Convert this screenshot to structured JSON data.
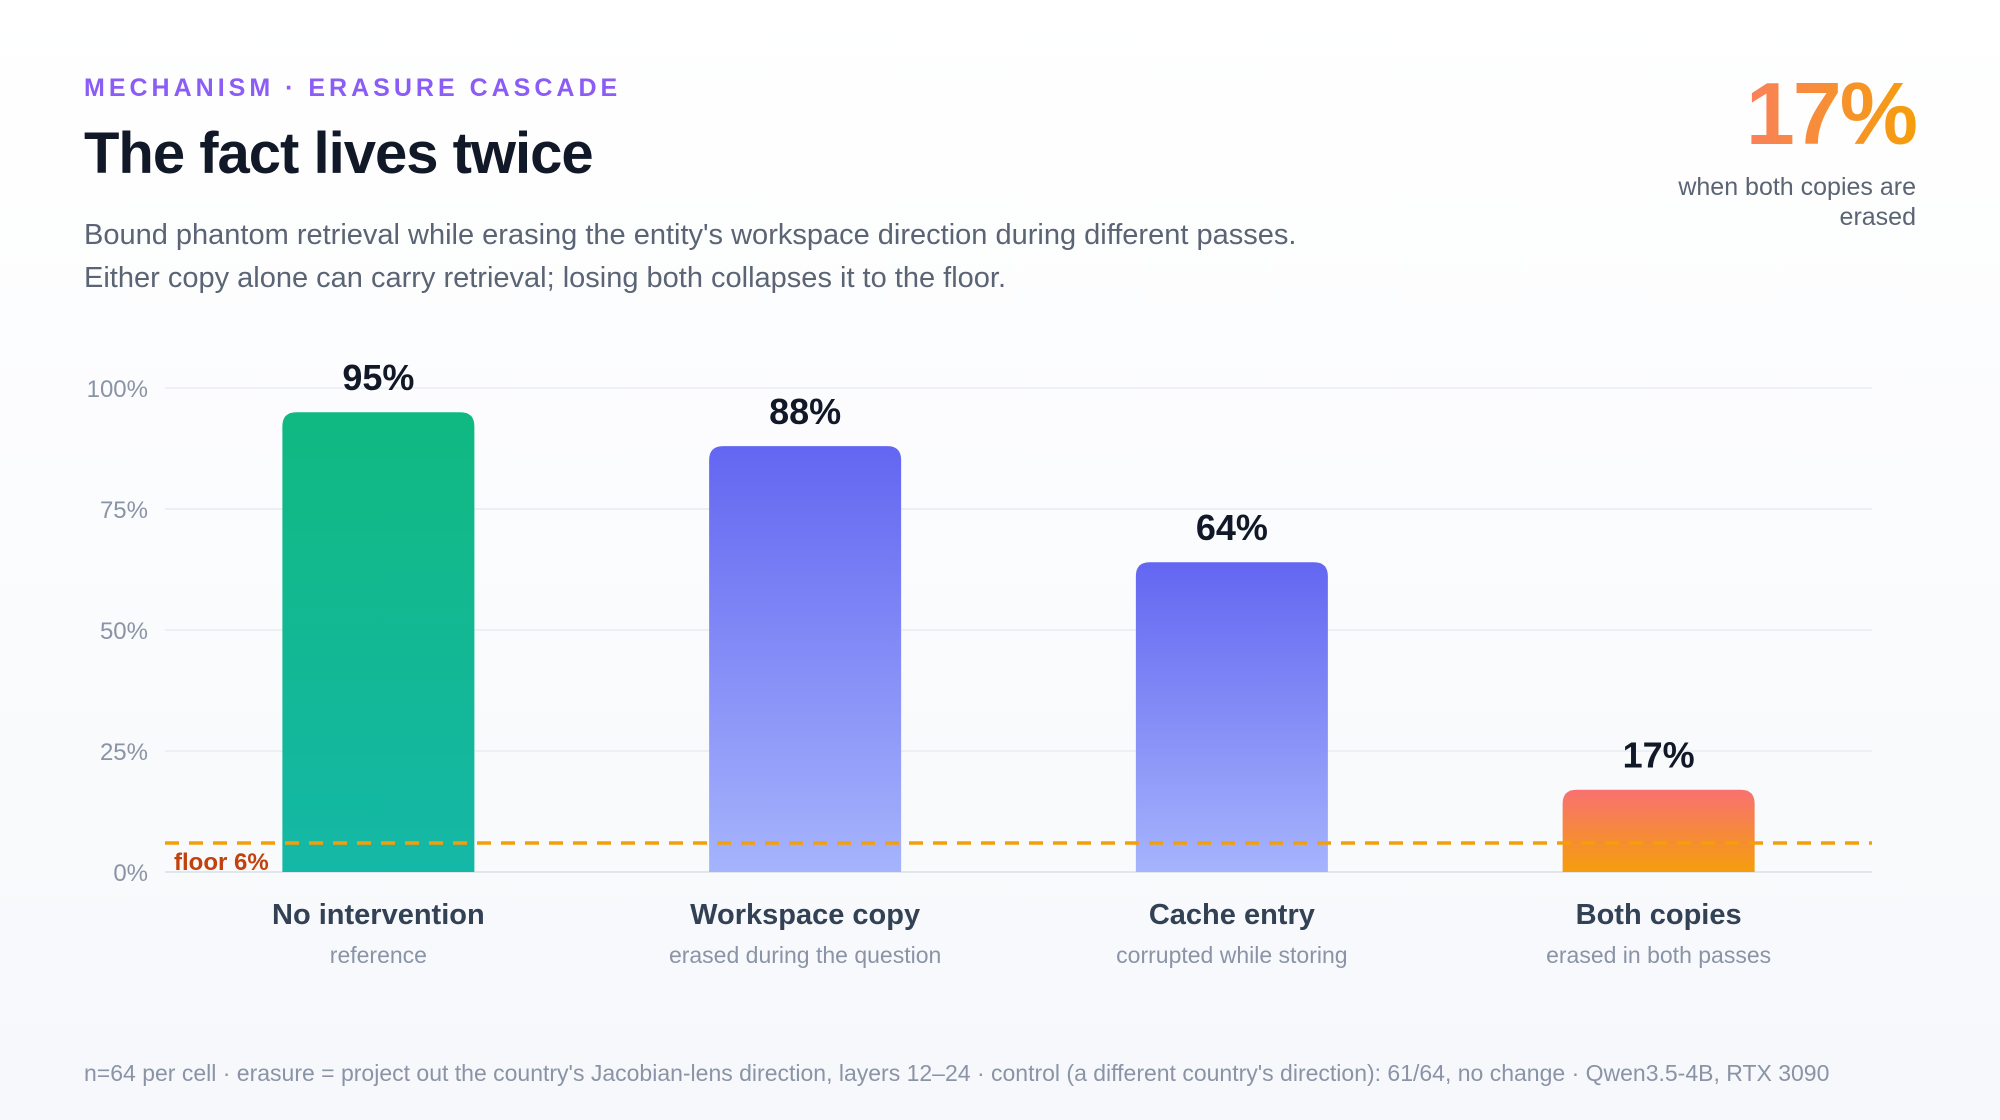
{
  "header": {
    "eyebrow": "MECHANISM · ERASURE CASCADE",
    "title": "The fact lives twice",
    "subtitle_lines": [
      "Bound phantom retrieval while erasing the entity's workspace direction during different passes.",
      "Either copy alone can carry retrieval; losing both collapses it to the floor."
    ]
  },
  "kpi": {
    "value": "17%",
    "caption": "when both copies are erased"
  },
  "chart_data": {
    "type": "bar",
    "categories": [
      "No intervention",
      "Workspace copy",
      "Cache entry",
      "Both copies"
    ],
    "category_sublabels": [
      "reference",
      "erased during the question",
      "corrupted while storing",
      "erased in both passes"
    ],
    "values": [
      95,
      88,
      64,
      17
    ],
    "value_labels": [
      "95%",
      "88%",
      "64%",
      "17%"
    ],
    "ylim": [
      0,
      100
    ],
    "y_ticks": [
      0,
      25,
      50,
      75,
      100
    ],
    "y_tick_labels": [
      "0%",
      "25%",
      "50%",
      "75%",
      "100%"
    ],
    "grid": true,
    "reference_line": {
      "value": 6,
      "label": "floor 6%",
      "color": "#f59e0b"
    },
    "bar_colors": [
      {
        "top": "#10b981",
        "bottom": "#14b8a6"
      },
      {
        "top": "#6366f1",
        "bottom": "#a5b4fc"
      },
      {
        "top": "#6366f1",
        "bottom": "#a5b4fc"
      },
      {
        "top": "#f87171",
        "bottom": "#f59e0b"
      }
    ]
  },
  "footnote": "n=64 per cell · erasure = project out the country's Jacobian-lens direction, layers 12–24 · control (a different country's direction): 61/64, no change · Qwen3.5-4B, RTX 3090"
}
